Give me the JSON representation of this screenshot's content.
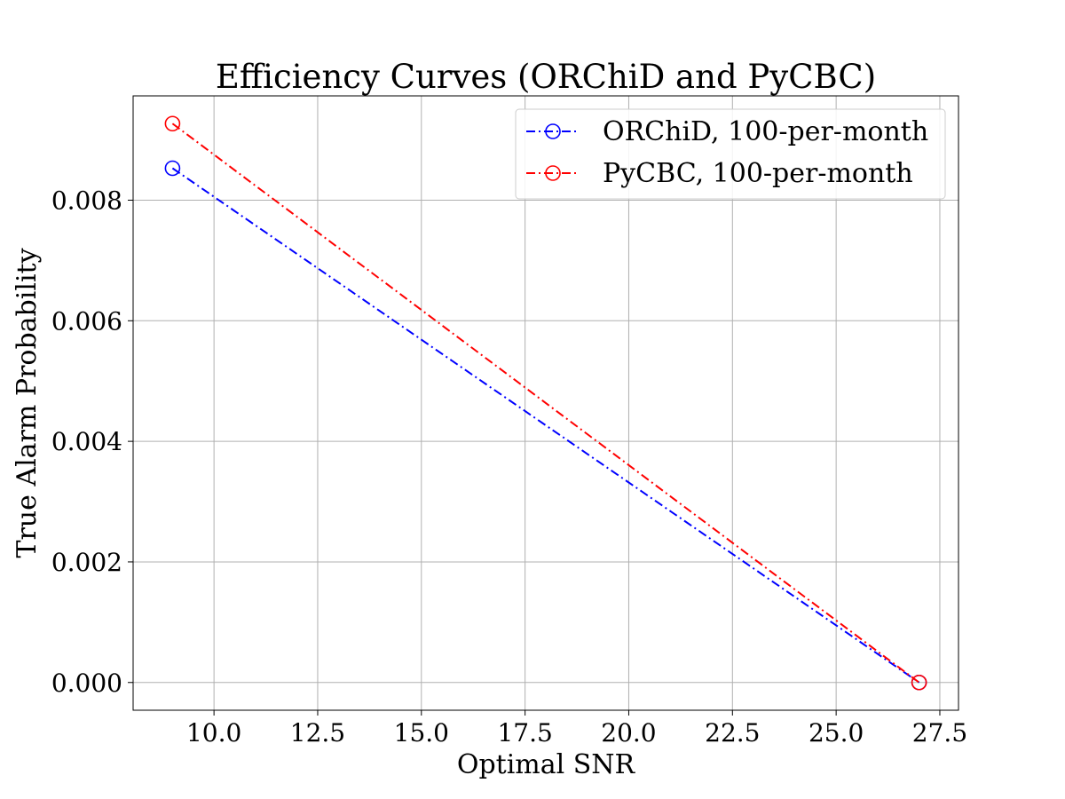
{
  "chart_data": {
    "type": "line",
    "title": "Efficiency Curves (ORChiD and PyCBC)",
    "xlabel": "Optimal SNR",
    "ylabel": "True Alarm Probability",
    "xlim": [
      8.05,
      27.95
    ],
    "ylim": [
      -0.00046,
      0.00973
    ],
    "x_ticks": [
      10.0,
      12.5,
      15.0,
      17.5,
      20.0,
      22.5,
      25.0,
      27.5
    ],
    "x_tick_labels": [
      "10.0",
      "12.5",
      "15.0",
      "17.5",
      "20.0",
      "22.5",
      "25.0",
      "27.5"
    ],
    "y_ticks": [
      0.0,
      0.002,
      0.004,
      0.006,
      0.008
    ],
    "y_tick_labels": [
      "0.000",
      "0.002",
      "0.004",
      "0.006",
      "0.008"
    ],
    "grid": true,
    "legend_position": "top-right",
    "series": [
      {
        "name": "ORChiD, 100-per-month",
        "color": "#0000ff",
        "line_style": "dashdot",
        "marker": "open-circle",
        "x": [
          9,
          27
        ],
        "y": [
          0.00853,
          0.0
        ]
      },
      {
        "name": "PyCBC, 100-per-month",
        "color": "#ff0000",
        "line_style": "dashdot",
        "marker": "open-circle",
        "x": [
          9,
          27
        ],
        "y": [
          0.00927,
          0.0
        ]
      }
    ]
  }
}
